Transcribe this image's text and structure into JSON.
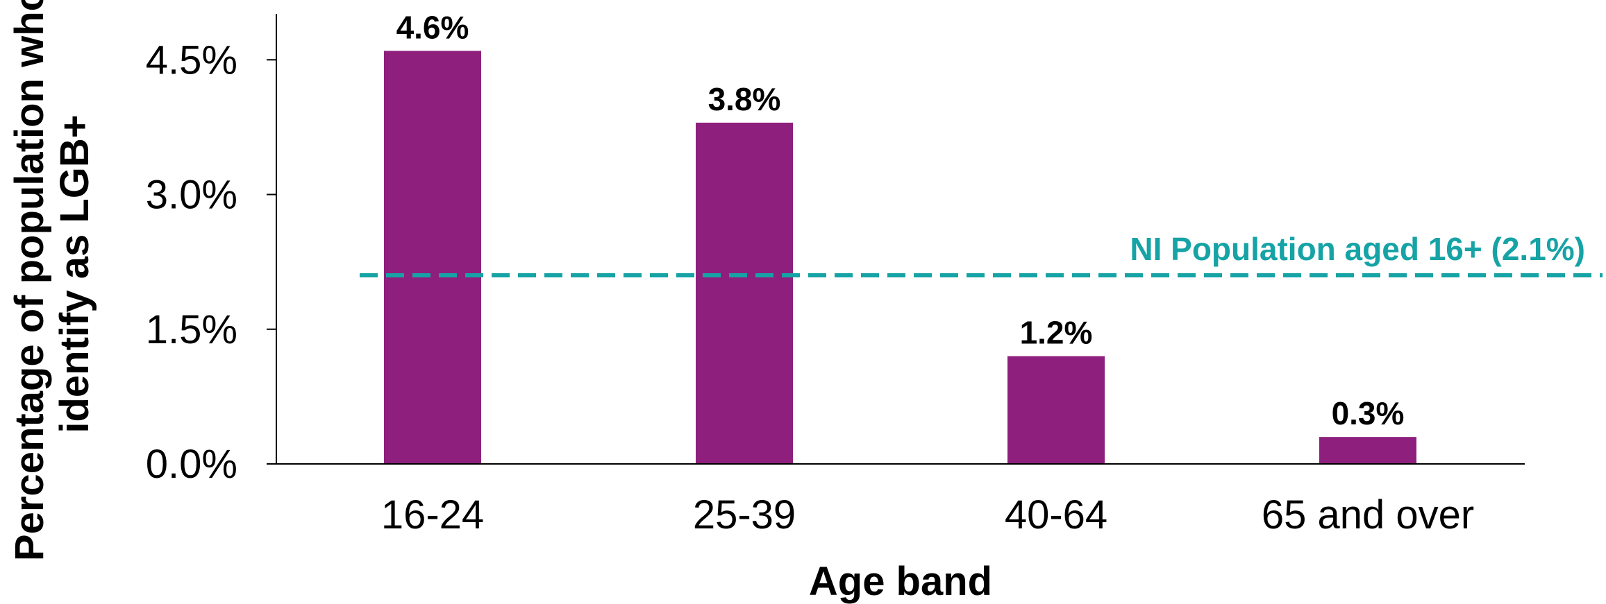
{
  "chart_data": {
    "type": "bar",
    "title": "",
    "xlabel": "Age band",
    "ylabel": [
      "Percentage of population who",
      "identify as LGB+"
    ],
    "categories": [
      "16-24",
      "25-39",
      "40-64",
      "65 and over"
    ],
    "values": [
      4.6,
      3.8,
      1.2,
      0.3
    ],
    "data_labels": [
      "4.6%",
      "3.8%",
      "1.2%",
      "0.3%"
    ],
    "ylim": [
      0,
      5.0
    ],
    "yticks": [
      0,
      1.5,
      3.0,
      4.5
    ],
    "ytick_labels": [
      "0.0%",
      "1.5%",
      "3.0%",
      "4.5%"
    ],
    "grid": false,
    "legend": "none",
    "bar_color": "#8e1f7d",
    "reference_line": {
      "value": 2.1,
      "label": "NI Population aged 16+ (2.1%)",
      "color": "#16a3a5",
      "style": "dashed"
    }
  }
}
